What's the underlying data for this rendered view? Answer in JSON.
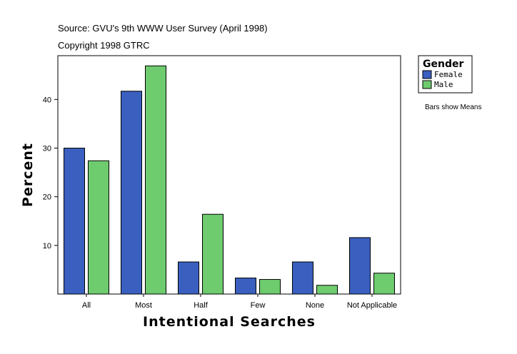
{
  "header": {
    "source": "Source: GVU's 9th WWW User Survey (April 1998)",
    "copyright": "Copyright 1998 GTRC"
  },
  "legend": {
    "title": "Gender",
    "items": [
      {
        "label": "Female",
        "color": "#3a5fbf"
      },
      {
        "label": "Male",
        "color": "#6ecb6e"
      }
    ]
  },
  "note": "Bars show Means",
  "chart_data": {
    "type": "bar",
    "xlabel": "Intentional Searches",
    "ylabel": "Percent",
    "categories": [
      "All",
      "Most",
      "Half",
      "Few",
      "None",
      "Not Applicable"
    ],
    "series": [
      {
        "name": "Female",
        "color": "#3a5fbf",
        "values": [
          30.0,
          41.7,
          6.6,
          3.3,
          6.6,
          11.6
        ]
      },
      {
        "name": "Male",
        "color": "#6ecb6e",
        "values": [
          27.4,
          46.9,
          16.4,
          3.0,
          1.8,
          4.3
        ]
      }
    ],
    "yticks": [
      10,
      20,
      30,
      40
    ],
    "ylim": [
      0,
      49
    ],
    "grid": false,
    "legend_position": "top-right, outside plot"
  }
}
